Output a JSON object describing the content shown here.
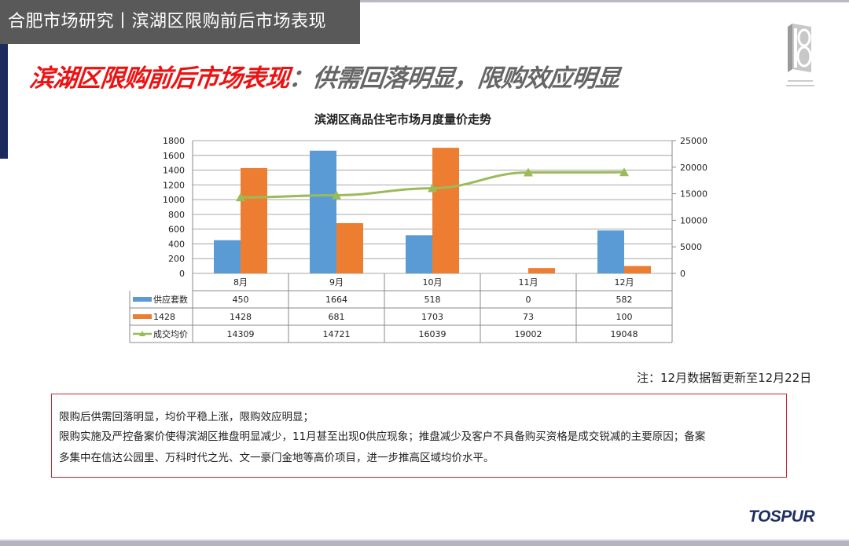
{
  "header": {
    "section_tab": "合肥市场研究丨滨湖区限购前后市场表现",
    "headline_red": "滨湖区限购前后市场表现",
    "headline_gray": "：供需回落明显，限购效应明显",
    "logo_icon": "18-anniversary-logo-icon"
  },
  "chart_data": {
    "type": "bar",
    "title": "滨湖区商品住宅市场月度量价走势",
    "categories": [
      "8月",
      "9月",
      "10月",
      "11月",
      "12月"
    ],
    "series": [
      {
        "name": "供应套数",
        "type": "bar",
        "axis": "left",
        "color": "#5b9bd5",
        "values": [
          450,
          1664,
          518,
          0,
          582
        ]
      },
      {
        "name": "1428",
        "type": "bar",
        "axis": "left",
        "color": "#ed7d31",
        "values": [
          1428,
          681,
          1703,
          73,
          100
        ]
      },
      {
        "name": "成交均价",
        "type": "line",
        "axis": "right",
        "color": "#9bbb59",
        "marker": "triangle",
        "values": [
          14309,
          14721,
          16039,
          19002,
          19048
        ]
      }
    ],
    "left_axis": {
      "ylim": [
        0,
        1800
      ],
      "ticks": [
        "1800",
        "1600",
        "1400",
        "1200",
        "1000",
        "800",
        "600",
        "400",
        "200",
        "0"
      ]
    },
    "right_axis": {
      "ylim": [
        0,
        25000
      ],
      "ticks": [
        "25000",
        "20000",
        "15000",
        "10000",
        "5000",
        "0"
      ]
    },
    "xlabel": "",
    "ylabel": "",
    "grid": true,
    "legend_position": "data-table",
    "data_table": {
      "rows": [
        {
          "label": "供应套数",
          "cells": [
            "450",
            "1664",
            "518",
            "0",
            "582"
          ]
        },
        {
          "label": "1428",
          "cells": [
            "1428",
            "681",
            "1703",
            "73",
            "100"
          ]
        },
        {
          "label": "成交均价",
          "cells": [
            "14309",
            "14721",
            "16039",
            "19002",
            "19048"
          ]
        }
      ]
    }
  },
  "note": "注：12月数据暂更新至12月22日",
  "summary": {
    "lines": [
      "限购后供需回落明显，均价平稳上涨，限购效应明显；",
      "限购实施及严控备案价使得滨湖区推盘明显减少，11月甚至出现0供应现象；推盘减少及客户不具备购买资格是成交锐减的主要原因；备案",
      "多集中在信达公园里、万科时代之光、文一豪门金地等高价项目，进一步推高区域均价水平。"
    ]
  },
  "footer": {
    "brand": "TOSPUR"
  }
}
